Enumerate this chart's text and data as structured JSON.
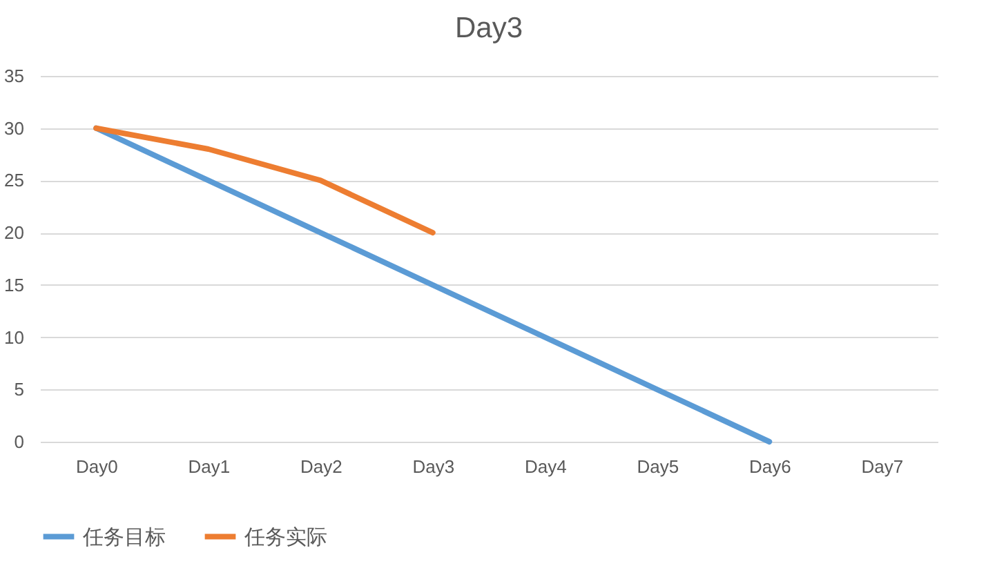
{
  "chart_data": {
    "type": "line",
    "title": "Day3",
    "categories": [
      "Day0",
      "Day1",
      "Day2",
      "Day3",
      "Day4",
      "Day5",
      "Day6",
      "Day7"
    ],
    "series": [
      {
        "name": "任务目标",
        "color": "#5b9bd5",
        "values": [
          30,
          25,
          20,
          15,
          10,
          5,
          0,
          null
        ]
      },
      {
        "name": "任务实际",
        "color": "#ed7d31",
        "values": [
          30,
          28,
          25,
          20,
          null,
          null,
          null,
          null
        ]
      }
    ],
    "ylim": [
      0,
      35
    ],
    "yticks": [
      0,
      5,
      10,
      15,
      20,
      25,
      30,
      35
    ],
    "grid": "y",
    "legend": "bottom",
    "marker": "none",
    "line_style": "solid"
  }
}
